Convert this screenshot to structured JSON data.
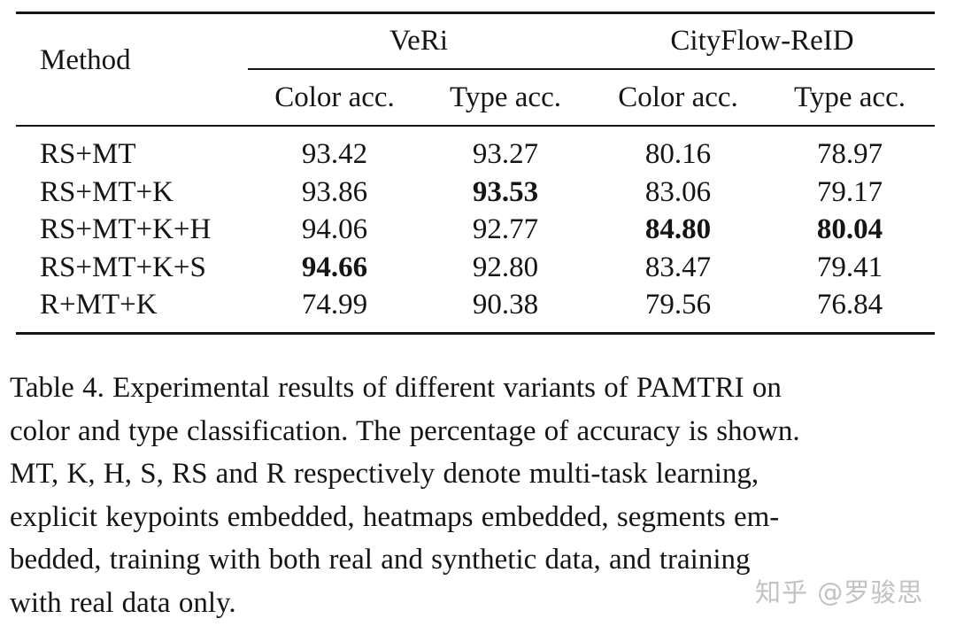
{
  "table": {
    "header": {
      "method_label": "Method",
      "group_veri": "VeRi",
      "group_cityflow": "CityFlow-ReID",
      "color_acc": "Color acc.",
      "type_acc": "Type acc."
    },
    "rows": [
      {
        "method": "RS+MT",
        "veri_color": "93.42",
        "veri_type": "93.27",
        "city_color": "80.16",
        "city_type": "78.97",
        "bold": []
      },
      {
        "method": "RS+MT+K",
        "veri_color": "93.86",
        "veri_type": "93.53",
        "city_color": "83.06",
        "city_type": "79.17",
        "bold": [
          "veri_type"
        ]
      },
      {
        "method": "RS+MT+K+H",
        "veri_color": "94.06",
        "veri_type": "92.77",
        "city_color": "84.80",
        "city_type": "80.04",
        "bold": [
          "city_color",
          "city_type"
        ]
      },
      {
        "method": "RS+MT+K+S",
        "veri_color": "94.66",
        "veri_type": "92.80",
        "city_color": "83.47",
        "city_type": "79.41",
        "bold": [
          "veri_color"
        ]
      },
      {
        "method": "R+MT+K",
        "veri_color": "74.99",
        "veri_type": "90.38",
        "city_color": "79.56",
        "city_type": "76.84",
        "bold": []
      }
    ]
  },
  "caption": {
    "lines": [
      "Table 4. Experimental results of different variants of PAMTRI on",
      "color and type classification. The percentage of accuracy is shown.",
      "MT, K, H, S, RS and R respectively denote multi-task learning,",
      "explicit keypoints embedded, heatmaps embedded, segments em-",
      "bedded, training with both real and synthetic data, and training",
      "with real data only."
    ]
  },
  "watermark": "知乎 @罗骏思"
}
